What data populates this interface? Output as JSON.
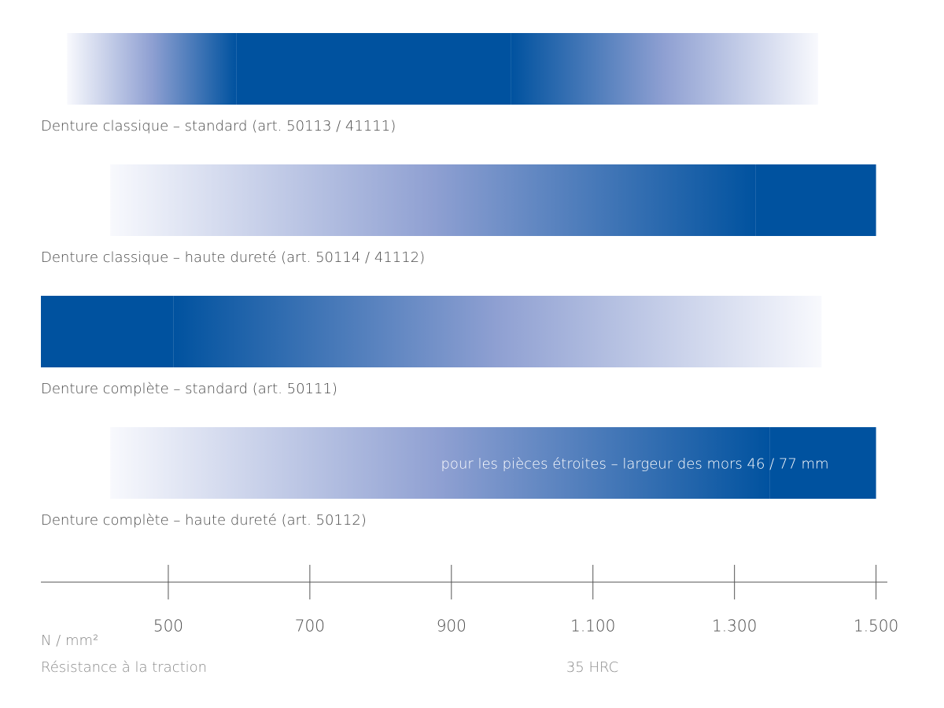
{
  "chart_data": {
    "type": "range-bar",
    "color": "#00529f",
    "series": [
      {
        "name": "Denture classique – standard (art. 50113 / 41111)",
        "start": 357,
        "solid_start": 596,
        "solid_end": 984,
        "end": 1418
      },
      {
        "name": "Denture classique – haute dureté (art. 50114 / 41112)",
        "start": 418,
        "solid_start": 1330,
        "solid_end": 1500,
        "end": 1500
      },
      {
        "name": "Denture complète – standard (art. 50111)",
        "start": 320,
        "solid_start": 320,
        "solid_end": 507,
        "end": 1423
      },
      {
        "name": "Denture complète – haute dureté (art. 50112)",
        "start": 418,
        "solid_start": 1350,
        "solid_end": 1500,
        "end": 1500,
        "note": "pour les pièces étroites – largeur des mors 46 / 77 mm"
      }
    ],
    "xlim": [
      320,
      1516
    ],
    "xticks": [
      500,
      700,
      900,
      {
        "value": 1100,
        "label": "1.100"
      },
      {
        "value": 1300,
        "label": "1.300"
      },
      {
        "value": 1500,
        "label": "1.500"
      }
    ],
    "x_unit": "N / mm²",
    "x_label": "Résistance à la traction",
    "annotation": "35 HRC"
  }
}
